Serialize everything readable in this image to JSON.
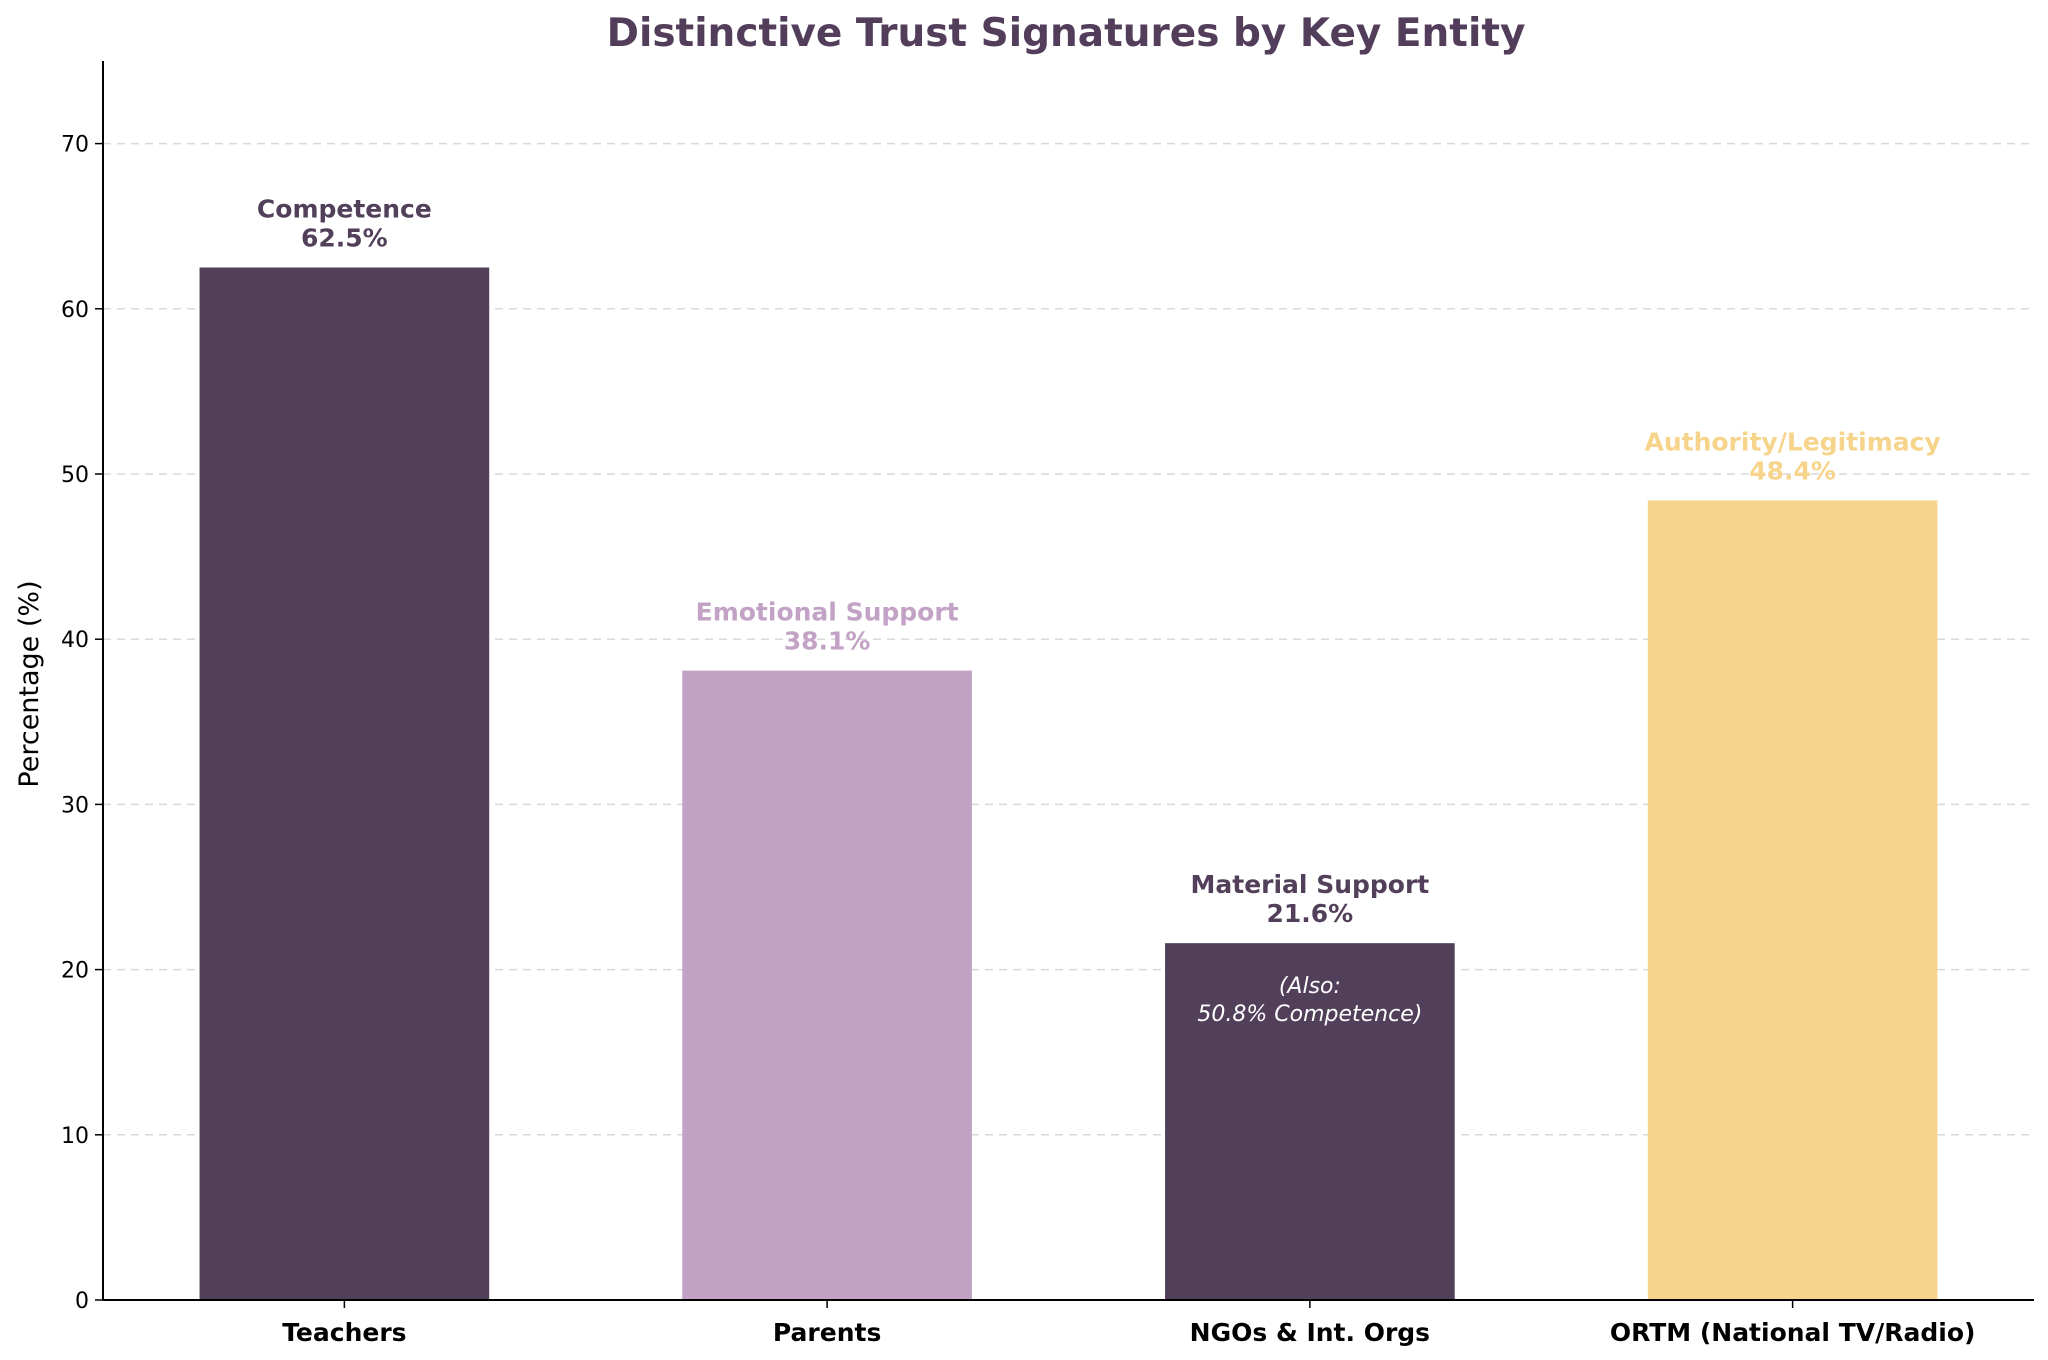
{
  "chart_data": {
    "type": "bar",
    "title": "Distinctive Trust Signatures by Key Entity",
    "xlabel": "",
    "ylabel": "Percentage (%)",
    "ylim": [
      0,
      75
    ],
    "yticks": [
      0,
      10,
      20,
      30,
      40,
      50,
      60,
      70
    ],
    "grid": "y-dashed",
    "categories": [
      "Teachers",
      "Parents",
      "NGOs & Int. Orgs",
      "ORTM (National TV/Radio)"
    ],
    "values": [
      62.5,
      38.1,
      21.6,
      48.4
    ],
    "bar_labels": [
      "Competence",
      "Emotional Support",
      "Material Support",
      "Authority/Legitimacy"
    ],
    "value_labels": [
      "62.5%",
      "38.1%",
      "21.6%",
      "48.4%"
    ],
    "colors": [
      "#52405a",
      "#c2a3c6",
      "#52405a",
      "#f7d48b"
    ],
    "label_colors": [
      "#52405a",
      "#c2a3c6",
      "#52405a",
      "#f7d48b"
    ],
    "annotation": {
      "category_index": 2,
      "lines": [
        "(Also:",
        "50.8% Competence)"
      ]
    }
  }
}
